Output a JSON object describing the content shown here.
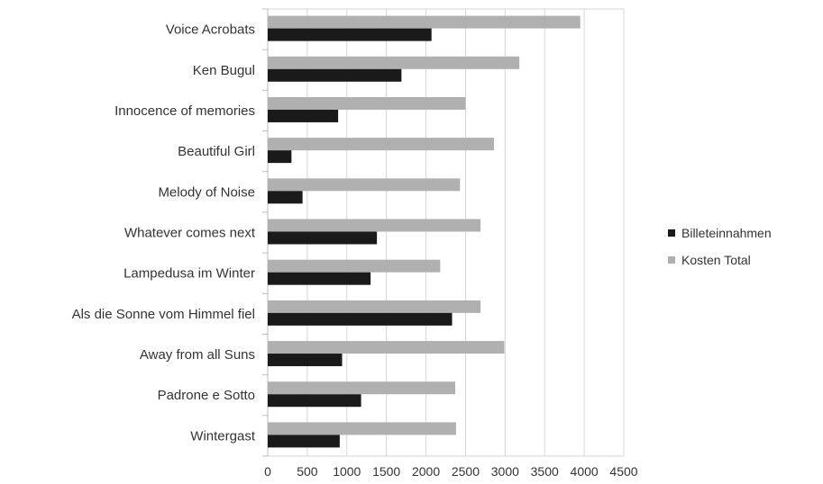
{
  "chart_data": {
    "type": "bar",
    "orientation": "horizontal",
    "categories": [
      "Voice Acrobats",
      "Ken Bugul",
      "Innocence of memories",
      "Beautiful Girl",
      "Melody of Noise",
      "Whatever comes next",
      "Lampedusa im Winter",
      "Als die Sonne vom Himmel fiel",
      "Away from all Suns",
      "Padrone e Sotto",
      "Wintergast"
    ],
    "series": [
      {
        "name": "Billeteinnahmen",
        "color": "#1a1a1a",
        "values": [
          2070,
          1690,
          890,
          300,
          440,
          1380,
          1300,
          2330,
          940,
          1180,
          910
        ]
      },
      {
        "name": "Kosten Total",
        "color": "#b0b0b0",
        "values": [
          3950,
          3180,
          2500,
          2860,
          2430,
          2690,
          2180,
          2690,
          2990,
          2370,
          2380
        ]
      }
    ],
    "xlim": [
      0,
      4500
    ],
    "xticks": [
      0,
      500,
      1000,
      1500,
      2000,
      2500,
      3000,
      3500,
      4000,
      4500
    ],
    "title": "",
    "xlabel": "",
    "ylabel": "",
    "grid": "vertical",
    "legend_position": "right"
  }
}
